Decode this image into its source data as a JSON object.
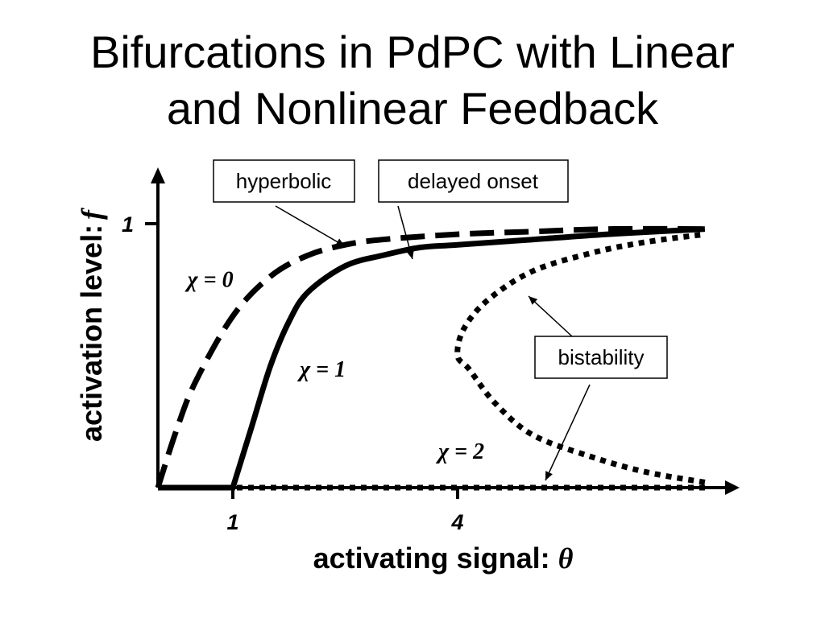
{
  "slide": {
    "title_line1": "Bifurcations in PdPC with Linear",
    "title_line2": "and Nonlinear Feedback"
  },
  "chart_data": {
    "type": "line",
    "title": "Bifurcations in PdPC with Linear and Nonlinear Feedback",
    "xlabel": "activating signal:",
    "xlabel_symbol": "θ",
    "ylabel": "activation level:",
    "ylabel_symbol": "f",
    "xlim": [
      0,
      7.4
    ],
    "ylim": [
      0,
      1.2
    ],
    "x_ticks": [
      {
        "value": 1,
        "label": "1"
      },
      {
        "value": 4,
        "label": "4"
      }
    ],
    "y_ticks": [
      {
        "value": 1,
        "label": "1"
      }
    ],
    "grid": false,
    "legend": "none",
    "series": [
      {
        "key": "chi0",
        "style": "dashed",
        "x": [
          0,
          0.25,
          0.5,
          1.0,
          1.5,
          2.0,
          2.5,
          3.0,
          4.0,
          5.0,
          6.0,
          7.3
        ],
        "y": [
          0,
          0.22,
          0.4,
          0.65,
          0.8,
          0.88,
          0.92,
          0.94,
          0.96,
          0.97,
          0.98,
          0.98
        ]
      },
      {
        "key": "chi1",
        "style": "solid",
        "x": [
          0,
          1.0,
          1.25,
          1.5,
          1.75,
          2.0,
          2.5,
          3.0,
          3.5,
          4.0,
          5.0,
          6.0,
          7.3
        ],
        "y": [
          0,
          0,
          0.23,
          0.46,
          0.63,
          0.74,
          0.84,
          0.88,
          0.91,
          0.92,
          0.94,
          0.96,
          0.98
        ]
      },
      {
        "key": "chi2",
        "style": "dotted",
        "x": [
          0,
          7.3
        ],
        "y": [
          0,
          0
        ]
      },
      {
        "key": "chi2_fold",
        "style": "dotted",
        "x": [
          7.3,
          6.5,
          5.75,
          5.0,
          4.5,
          4.15,
          4.0,
          4.08,
          4.4,
          5.0,
          5.8,
          6.5,
          7.3
        ],
        "y": [
          0.02,
          0.06,
          0.12,
          0.2,
          0.32,
          0.45,
          0.5,
          0.6,
          0.71,
          0.82,
          0.89,
          0.93,
          0.96
        ]
      }
    ],
    "curve_labels": [
      {
        "text": "χ = 0",
        "x": 0.7,
        "y": 0.76
      },
      {
        "text": "χ = 1",
        "x": 2.2,
        "y": 0.42
      },
      {
        "text": "χ = 2",
        "x": 4.05,
        "y": 0.11
      }
    ],
    "annotations": [
      {
        "text": "hyperbolic"
      },
      {
        "text": "delayed onset"
      },
      {
        "text": "bistability"
      }
    ]
  }
}
